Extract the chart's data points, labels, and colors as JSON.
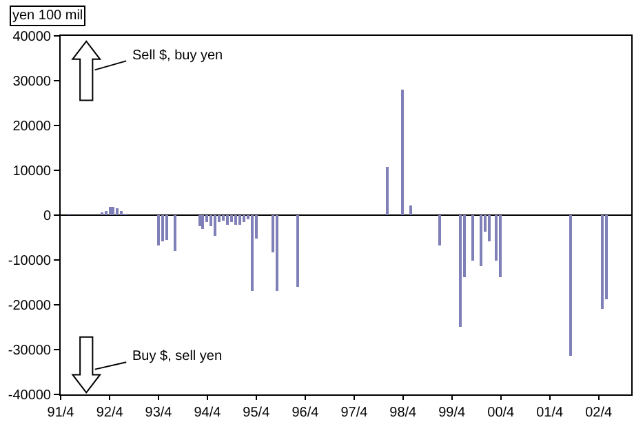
{
  "chart_data": {
    "type": "bar",
    "ylabel": "yen 100 mil",
    "x": [
      "1991-06",
      "1992-02",
      "1992-03",
      "1992-04",
      "1992-05",
      "1992-06",
      "1992-07",
      "1992-08",
      "1993-04",
      "1993-05",
      "1993-06",
      "1993-08",
      "1994-02",
      "1994-03",
      "1994-04",
      "1994-05",
      "1994-06",
      "1994-07",
      "1994-08",
      "1994-09",
      "1994-10",
      "1994-11",
      "1994-12",
      "1995-01",
      "1995-02",
      "1995-03",
      "1995-04",
      "1995-08",
      "1995-09",
      "1996-02",
      "1997-12",
      "1998-04",
      "1998-06",
      "1999-01",
      "1999-06",
      "1999-07",
      "1999-09",
      "1999-11",
      "1999-12",
      "2000-01",
      "2000-03",
      "2000-04",
      "2001-09",
      "2002-05",
      "2002-06"
    ],
    "values": [
      300,
      500,
      1000,
      2000,
      1800,
      1500,
      800,
      300,
      -6800,
      -5800,
      -5400,
      -8000,
      -2500,
      -3000,
      -1500,
      -2500,
      -4600,
      -1500,
      -1200,
      -2000,
      -1500,
      -2000,
      -2000,
      -1500,
      -1000,
      -16800,
      -5100,
      -8200,
      -16800,
      -16000,
      10700,
      28000,
      2200,
      -6800,
      -25000,
      -13700,
      -10100,
      -11500,
      -3700,
      -5800,
      -10000,
      -13900,
      -31500,
      -21000,
      -18800
    ],
    "color": "#8080b8",
    "xlim": [
      "1991-04",
      "2002-12"
    ],
    "xticks": [
      {
        "value": "1991-04",
        "label": "91/4"
      },
      {
        "value": "1992-04",
        "label": "92/4"
      },
      {
        "value": "1993-04",
        "label": "93/4"
      },
      {
        "value": "1994-04",
        "label": "94/4"
      },
      {
        "value": "1995-04",
        "label": "95/4"
      },
      {
        "value": "1996-04",
        "label": "96/4"
      },
      {
        "value": "1997-04",
        "label": "97/4"
      },
      {
        "value": "1998-04",
        "label": "98/4"
      },
      {
        "value": "1999-04",
        "label": "99/4"
      },
      {
        "value": "2000-04",
        "label": "00/4"
      },
      {
        "value": "2001-04",
        "label": "01/4"
      },
      {
        "value": "2002-04",
        "label": "02/4"
      }
    ],
    "ylim": [
      -40000,
      40000
    ],
    "yticks": [
      -40000,
      -30000,
      -20000,
      -10000,
      0,
      10000,
      20000,
      30000,
      40000
    ],
    "annotations": [
      "Sell $, buy yen",
      "Buy $, sell yen"
    ]
  }
}
